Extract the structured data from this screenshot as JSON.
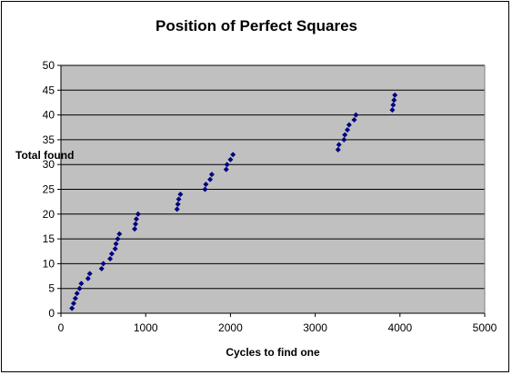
{
  "chart_data": {
    "type": "scatter",
    "title": "Position of Perfect Squares",
    "xlabel": "Cycles to find one",
    "ylabel": "Total found",
    "xlim": [
      0,
      5000
    ],
    "ylim": [
      0,
      50
    ],
    "xticks": [
      0,
      1000,
      2000,
      3000,
      4000,
      5000
    ],
    "yticks": [
      0,
      5,
      10,
      15,
      20,
      25,
      30,
      35,
      40,
      45,
      50
    ],
    "grid": true,
    "legend": "none",
    "plot_background": "#c0c0c0",
    "marker_color": "#000080",
    "marker": "diamond",
    "x": [
      130,
      150,
      170,
      190,
      220,
      240,
      320,
      340,
      480,
      500,
      580,
      600,
      640,
      650,
      670,
      690,
      870,
      880,
      890,
      910,
      1370,
      1380,
      1390,
      1410,
      1700,
      1710,
      1760,
      1780,
      1950,
      1960,
      2000,
      2030,
      3270,
      3280,
      3340,
      3350,
      3380,
      3400,
      3460,
      3480,
      3910,
      3920,
      3930,
      3940
    ],
    "y": [
      1,
      2,
      3,
      4,
      5,
      6,
      7,
      8,
      9,
      10,
      11,
      12,
      13,
      14,
      15,
      16,
      17,
      18,
      19,
      20,
      21,
      22,
      23,
      24,
      25,
      26,
      27,
      28,
      29,
      30,
      31,
      32,
      33,
      34,
      35,
      36,
      37,
      38,
      39,
      40,
      41,
      42,
      43,
      44
    ]
  }
}
